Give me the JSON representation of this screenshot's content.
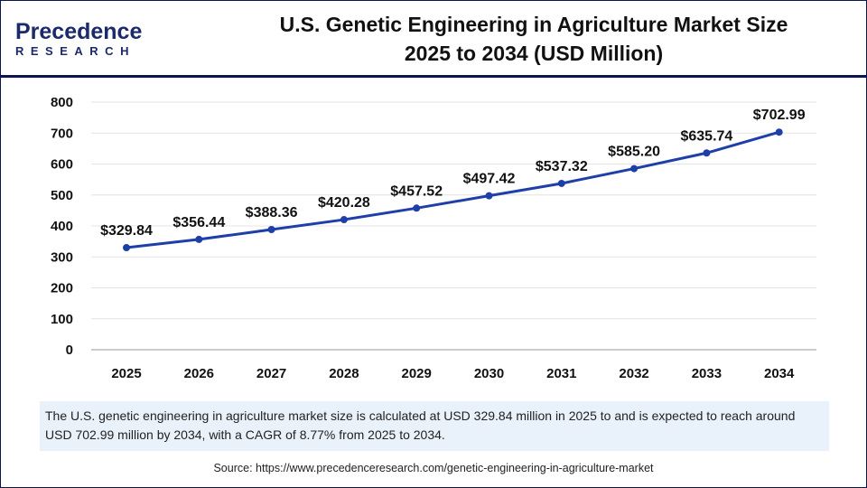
{
  "logo": {
    "line1": "Precedence",
    "line2": "RESEARCH"
  },
  "title": {
    "line1": "U.S. Genetic Engineering in Agriculture Market Size",
    "line2": "2025 to 2034 (USD Million)"
  },
  "chart_data": {
    "type": "line",
    "title": "U.S. Genetic Engineering in Agriculture Market Size 2025 to 2034 (USD Million)",
    "categories": [
      "2025",
      "2026",
      "2027",
      "2028",
      "2029",
      "2030",
      "2031",
      "2032",
      "2033",
      "2034"
    ],
    "values": [
      329.84,
      356.44,
      388.36,
      420.28,
      457.52,
      497.42,
      537.32,
      585.2,
      635.74,
      702.99
    ],
    "data_labels": [
      "$329.84",
      "$356.44",
      "$388.36",
      "$420.28",
      "$457.52",
      "$497.42",
      "$537.32",
      "$585.20",
      "$635.74",
      "$702.99"
    ],
    "yticks": [
      "0",
      "100",
      "200",
      "300",
      "400",
      "500",
      "600",
      "700",
      "800"
    ],
    "ylim": [
      0,
      800
    ],
    "grid": true,
    "line_color": "#1f3fa8"
  },
  "note": "The U.S. genetic engineering in agriculture market size is calculated at USD 329.84 million in 2025 to and is expected to reach around USD 702.99 million by 2034, with a CAGR of 8.77% from 2025 to 2034.",
  "source": "Source: https://www.precedenceresearch.com/genetic-engineering-in-agriculture-market"
}
